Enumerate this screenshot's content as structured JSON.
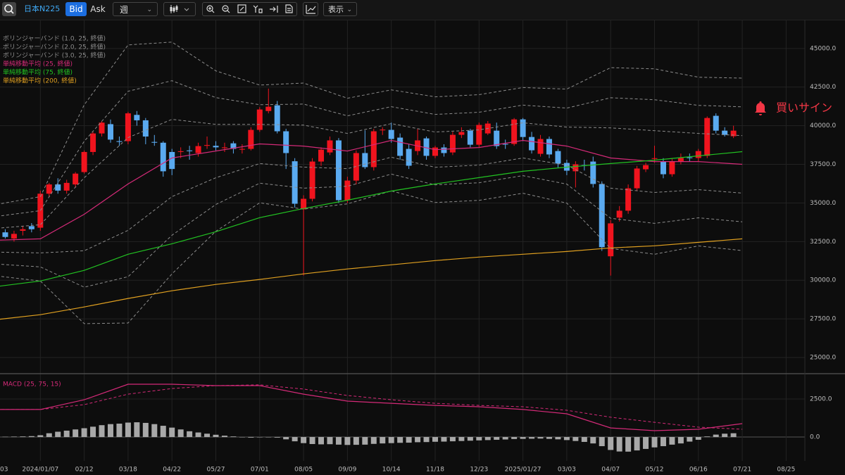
{
  "toolbar": {
    "symbol": "日本N225",
    "bid": "Bid",
    "ask": "Ask",
    "period": "週",
    "display": "表示"
  },
  "chart_data": {
    "type": "candlestick",
    "categories": [
      "03",
      null,
      null,
      null,
      null,
      "2024/01/07",
      null,
      null,
      null,
      null,
      "02/12",
      null,
      null,
      null,
      null,
      "03/18",
      null,
      null,
      null,
      null,
      "04/22",
      null,
      null,
      null,
      null,
      "05/27",
      null,
      null,
      null,
      null,
      "07/01",
      null,
      null,
      null,
      null,
      "08/05",
      null,
      null,
      null,
      null,
      "09/09",
      null,
      null,
      null,
      null,
      "10/14",
      null,
      null,
      null,
      null,
      "11/18",
      null,
      null,
      null,
      null,
      "12/23",
      null,
      null,
      null,
      null,
      "2025/01/27",
      null,
      null,
      null,
      null,
      "03/03",
      null,
      null,
      null,
      null,
      "04/07",
      null,
      null,
      null,
      null,
      "05/12",
      null,
      null,
      null,
      null,
      "06/16",
      null,
      null,
      null,
      null,
      "07/21",
      null,
      null,
      null,
      null,
      "08/25",
      null
    ],
    "open": [
      null,
      33100,
      32700,
      33200,
      33500,
      33400,
      35600,
      36200,
      35800,
      36200,
      37000,
      38300,
      39500,
      40100,
      39000,
      39000,
      40700,
      40350,
      38950,
      38900,
      38300,
      38300,
      38400,
      38230,
      38700,
      38700,
      38550,
      38860,
      38450,
      38500,
      39730,
      40950,
      41320,
      39640,
      37700,
      34590,
      35270,
      37680,
      38270,
      39050,
      35180,
      36450,
      38230,
      37320,
      39700,
      39730,
      39230,
      38500,
      38360,
      39180,
      38050,
      38590,
      38270,
      39410,
      39680,
      38770,
      39500,
      39680,
      38820,
      38820,
      40410,
      39270,
      38180,
      39140,
      38360,
      37590,
      37050,
      37450,
      37680,
      36230,
      31550,
      34050,
      34500,
      35950,
      37180,
      37850,
      37680,
      36860,
      37680,
      37950,
      37910,
      38050,
      40640,
      39680,
      39320,
      null,
      null,
      null,
      null,
      null,
      null,
      null
    ],
    "high": [
      null,
      33300,
      33200,
      33500,
      33700,
      35800,
      36300,
      36600,
      36500,
      37000,
      38400,
      39600,
      40300,
      40400,
      39300,
      40900,
      40950,
      40500,
      39400,
      39000,
      38500,
      38600,
      38700,
      38900,
      39300,
      39000,
      38900,
      39000,
      38800,
      39900,
      41200,
      42400,
      41600,
      39800,
      37900,
      35500,
      37900,
      38600,
      39300,
      39200,
      36700,
      38400,
      39700,
      39800,
      39900,
      40200,
      39500,
      38800,
      39800,
      39300,
      38700,
      38800,
      39600,
      39900,
      39800,
      40200,
      40300,
      40200,
      39100,
      40500,
      40500,
      39600,
      39400,
      39300,
      38500,
      37800,
      37700,
      37800,
      38000,
      36400,
      33900,
      34800,
      36200,
      37400,
      37600,
      38700,
      37900,
      37900,
      38200,
      38200,
      38500,
      40600,
      40800,
      39900,
      40000,
      null,
      null,
      null,
      null,
      null,
      null,
      null
    ],
    "low": [
      null,
      32700,
      32500,
      32900,
      33100,
      33200,
      35400,
      35600,
      35600,
      36000,
      36900,
      38100,
      39300,
      38900,
      38700,
      38800,
      40000,
      38800,
      38700,
      36700,
      36800,
      37900,
      37800,
      38000,
      38500,
      38400,
      38300,
      38200,
      38200,
      38400,
      39600,
      40800,
      39500,
      37200,
      34700,
      30300,
      35100,
      37400,
      38100,
      35000,
      35000,
      36200,
      37200,
      37100,
      39400,
      38900,
      37800,
      37200,
      38100,
      37800,
      37900,
      38000,
      38100,
      39200,
      38600,
      38600,
      39400,
      38500,
      38500,
      38700,
      39000,
      38200,
      38000,
      37900,
      37300,
      36800,
      36000,
      37100,
      36000,
      31900,
      30300,
      33800,
      34300,
      35800,
      37000,
      37600,
      36600,
      36700,
      37500,
      37700,
      37700,
      37900,
      39500,
      39300,
      39200,
      null,
      null,
      null,
      null,
      null,
      null,
      null
    ],
    "close": [
      null,
      32800,
      33000,
      33300,
      33300,
      35600,
      36200,
      35800,
      36300,
      36900,
      38300,
      39500,
      40200,
      39100,
      38950,
      40800,
      40350,
      39300,
      38900,
      37050,
      37200,
      38350,
      38350,
      38680,
      38750,
      38600,
      38600,
      38500,
      38500,
      39730,
      41050,
      41230,
      39640,
      38230,
      34950,
      35270,
      37680,
      38450,
      39050,
      35180,
      36450,
      38230,
      37320,
      39640,
      39750,
      39140,
      38050,
      37410,
      39050,
      38050,
      38590,
      38230,
      39410,
      39590,
      38770,
      40050,
      40140,
      38680,
      38800,
      40410,
      39270,
      38410,
      39140,
      38140,
      37550,
      37090,
      37500,
      37400,
      36230,
      32140,
      33680,
      34500,
      35950,
      37230,
      37450,
      37900,
      36860,
      37680,
      37910,
      37900,
      38360,
      40500,
      39680,
      39410,
      39680,
      null,
      null,
      null,
      null,
      null,
      null,
      null
    ],
    "up_color": "#f0141e",
    "down_color": "#5aaaf0",
    "ylim": [
      24090,
      46860
    ],
    "yticks": [
      {
        "value": 25000,
        "label": "25000.0"
      },
      {
        "value": 27500,
        "label": "27500.0"
      },
      {
        "value": 30000,
        "label": "30000.0"
      },
      {
        "value": 32500,
        "label": "32500.0"
      },
      {
        "value": 35000,
        "label": "35000.0"
      },
      {
        "value": 37500,
        "label": "37500.0"
      },
      {
        "value": 40000,
        "label": "40000.0"
      },
      {
        "value": 42500,
        "label": "42500.0"
      },
      {
        "value": 45000,
        "label": "45000.0"
      }
    ],
    "grid": true,
    "overlays": {
      "x": [
        "03",
        "2024/01/07",
        "02/12",
        "03/18",
        "04/22",
        "05/27",
        "07/01",
        "08/05",
        "09/09",
        "10/14",
        "11/18",
        "12/23",
        "2025/01/27",
        "03/03",
        "04/07",
        "05/12",
        "06/16",
        "07/21"
      ],
      "series": [
        {
          "name": "ボリンジャーバンド (1.0, 25, 終値)",
          "color": "#8c8c8c",
          "dashed": true,
          "upper": [
            33360,
            33590,
            36630,
            39230,
            40410,
            40090,
            40090,
            40040,
            39500,
            40140,
            39590,
            39730,
            40190,
            39910,
            39860,
            39680,
            39500,
            39360
          ],
          "lower": [
            31820,
            31770,
            31910,
            33230,
            35410,
            36630,
            37550,
            37320,
            37220,
            37960,
            37310,
            37450,
            37910,
            37450,
            35960,
            35680,
            35860,
            35640
          ]
        },
        {
          "name": "ボリンジャーバンド (2.0, 25, 終値)",
          "color": "#8c8c8c",
          "dashed": true,
          "upper": [
            34130,
            34500,
            38990,
            42230,
            42910,
            41820,
            41360,
            41400,
            40640,
            41230,
            40730,
            40870,
            41330,
            41140,
            41810,
            41680,
            41320,
            41220
          ],
          "lower": [
            31050,
            30860,
            29550,
            30230,
            32910,
            34900,
            36280,
            35960,
            36080,
            36870,
            36170,
            36310,
            36770,
            36220,
            34010,
            33680,
            34040,
            33780
          ]
        },
        {
          "name": "ボリンジャーバンド (3.0, 25, 終値)",
          "color": "#8c8c8c",
          "dashed": true,
          "upper": [
            34900,
            35410,
            41350,
            45230,
            45410,
            43550,
            42630,
            42760,
            41780,
            42320,
            41870,
            42010,
            42470,
            42370,
            43760,
            43680,
            43140,
            43080
          ],
          "lower": [
            30280,
            29950,
            27190,
            27230,
            30410,
            33170,
            35010,
            34600,
            34940,
            35780,
            35030,
            35170,
            35630,
            34990,
            32060,
            31680,
            32220,
            31920
          ]
        },
        {
          "name": "単純移動平均 (25, 終値)",
          "color": "#d42a78",
          "values": [
            32590,
            32680,
            34270,
            36230,
            37910,
            38360,
            38820,
            38680,
            38360,
            39050,
            38450,
            38590,
            39050,
            38680,
            37910,
            37680,
            37680,
            37500
          ]
        },
        {
          "name": "単純移動平均 (75, 終値)",
          "color": "#22c322",
          "values": [
            29590,
            29950,
            30640,
            31680,
            32360,
            33140,
            34050,
            34640,
            35180,
            35770,
            36230,
            36640,
            37050,
            37320,
            37550,
            37770,
            38050,
            38320
          ]
        },
        {
          "name": "単純移動平均 (200, 終値)",
          "color": "#e0a020",
          "values": [
            27450,
            27770,
            28270,
            28820,
            29320,
            29730,
            30050,
            30410,
            30730,
            31000,
            31270,
            31500,
            31680,
            31860,
            32090,
            32230,
            32450,
            32680
          ]
        }
      ]
    },
    "annotation": "買いサイン",
    "annotation_color": "#f23645",
    "macd": {
      "label": "MACD (25, 75, 15)",
      "label_color": "#d42a78",
      "ylim": [
        -1570,
        3980
      ],
      "yticks": [
        {
          "value": 0,
          "label": "0.0"
        },
        {
          "value": 2500,
          "label": "2500.0"
        }
      ],
      "series": [
        {
          "color": "#d42a78",
          "dashed": false,
          "values": [
            1810,
            1810,
            2450,
            3470,
            3470,
            3380,
            3380,
            2820,
            2360,
            2220,
            2080,
            1990,
            1810,
            1530,
            600,
            420,
            510,
            880
          ]
        },
        {
          "color": "#d42a78",
          "dashed": true,
          "values": [
            1810,
            1810,
            2130,
            2820,
            3190,
            3380,
            3430,
            3150,
            2730,
            2450,
            2220,
            2080,
            1990,
            1760,
            1300,
            970,
            650,
            510
          ]
        }
      ],
      "histogram": {
        "color": "#a8a8a8",
        "values": [
          null,
          20,
          30,
          40,
          60,
          120,
          250,
          350,
          420,
          500,
          580,
          680,
          780,
          850,
          880,
          950,
          970,
          930,
          850,
          740,
          620,
          500,
          380,
          300,
          220,
          150,
          90,
          40,
          -20,
          -40,
          -20,
          -10,
          -40,
          -150,
          -280,
          -400,
          -460,
          -480,
          -470,
          -500,
          -520,
          -510,
          -500,
          -450,
          -420,
          -400,
          -380,
          -370,
          -340,
          -330,
          -310,
          -300,
          -280,
          -260,
          -240,
          -220,
          -200,
          -180,
          -160,
          -130,
          -120,
          -110,
          -100,
          -120,
          -150,
          -200,
          -260,
          -320,
          -420,
          -600,
          -850,
          -950,
          -960,
          -880,
          -780,
          -680,
          -600,
          -500,
          -420,
          -300,
          -180,
          40,
          160,
          220,
          250,
          null,
          null,
          null,
          null,
          null,
          null,
          null
        ]
      }
    }
  }
}
